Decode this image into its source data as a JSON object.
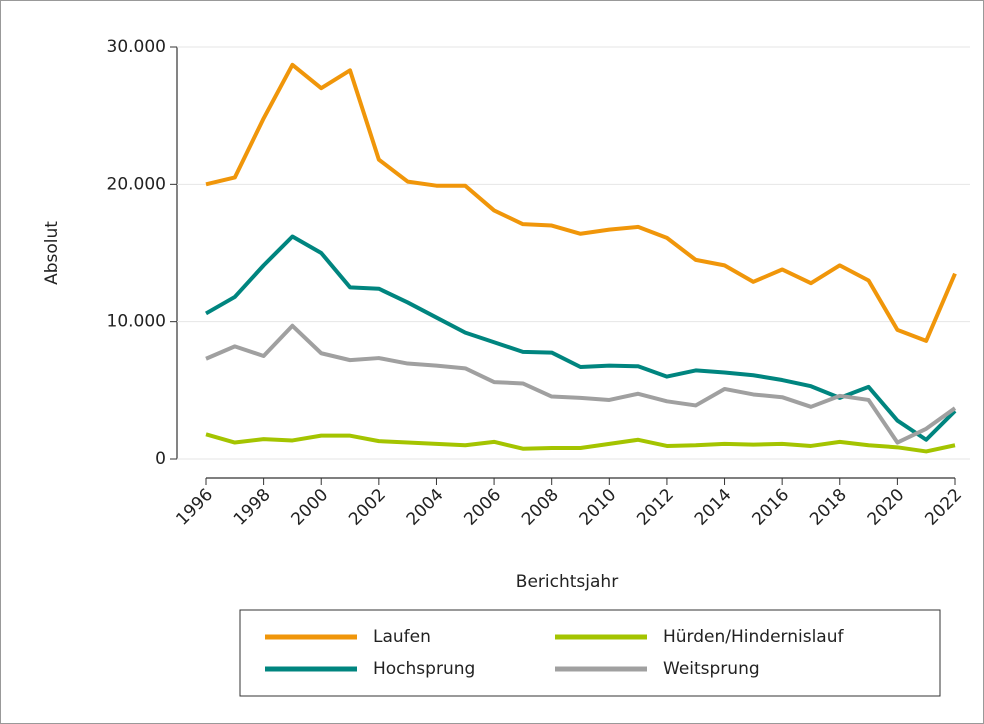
{
  "chart_data": {
    "type": "line",
    "x_label": "Berichtsjahr",
    "y_label": "Absolut",
    "x": [
      1996,
      1997,
      1998,
      1999,
      2000,
      2001,
      2002,
      2003,
      2004,
      2005,
      2006,
      2007,
      2008,
      2009,
      2010,
      2011,
      2012,
      2013,
      2014,
      2015,
      2016,
      2017,
      2018,
      2019,
      2020,
      2021,
      2022
    ],
    "series": [
      {
        "name": "Laufen",
        "color": "#f0960a",
        "values": [
          20000,
          20500,
          24800,
          28700,
          27000,
          28300,
          21800,
          20200,
          19900,
          19900,
          18100,
          17100,
          17000,
          16400,
          16700,
          16900,
          16100,
          14500,
          14100,
          12900,
          13800,
          12800,
          14100,
          13000,
          9400,
          8600,
          13500
        ]
      },
      {
        "name": "Hürden/Hindernislauf",
        "color": "#a4c400",
        "values": [
          1800,
          1200,
          1450,
          1350,
          1700,
          1700,
          1300,
          1200,
          1100,
          1000,
          1250,
          750,
          800,
          800,
          1100,
          1400,
          950,
          1000,
          1100,
          1050,
          1100,
          950,
          1250,
          1000,
          850,
          550,
          1000
        ]
      },
      {
        "name": "Hochsprung",
        "color": "#00857f",
        "values": [
          10600,
          11800,
          14100,
          16200,
          15000,
          12500,
          12400,
          11400,
          10300,
          9200,
          8500,
          7800,
          7750,
          6700,
          6800,
          6750,
          6000,
          6450,
          6300,
          6100,
          5750,
          5300,
          4450,
          5250,
          2800,
          1400,
          3500
        ]
      },
      {
        "name": "Weitsprung",
        "color": "#a0a0a0",
        "values": [
          7300,
          8200,
          7500,
          9700,
          7700,
          7200,
          7350,
          6950,
          6800,
          6600,
          5600,
          5500,
          4550,
          4450,
          4300,
          4750,
          4200,
          3900,
          5100,
          4700,
          4500,
          3800,
          4600,
          4300,
          1200,
          2200,
          3700
        ]
      }
    ],
    "xlim": [
      1996,
      2022
    ],
    "xticks": [
      1996,
      1998,
      2000,
      2002,
      2004,
      2006,
      2008,
      2010,
      2012,
      2014,
      2016,
      2018,
      2020,
      2022
    ],
    "ylim": [
      0,
      30000
    ],
    "yticks": [
      {
        "value": 0,
        "label": "0"
      },
      {
        "value": 10000,
        "label": "10.000"
      },
      {
        "value": 20000,
        "label": "20.000"
      },
      {
        "value": 30000,
        "label": "30.000"
      }
    ],
    "grid": true,
    "legend": "bottom"
  }
}
